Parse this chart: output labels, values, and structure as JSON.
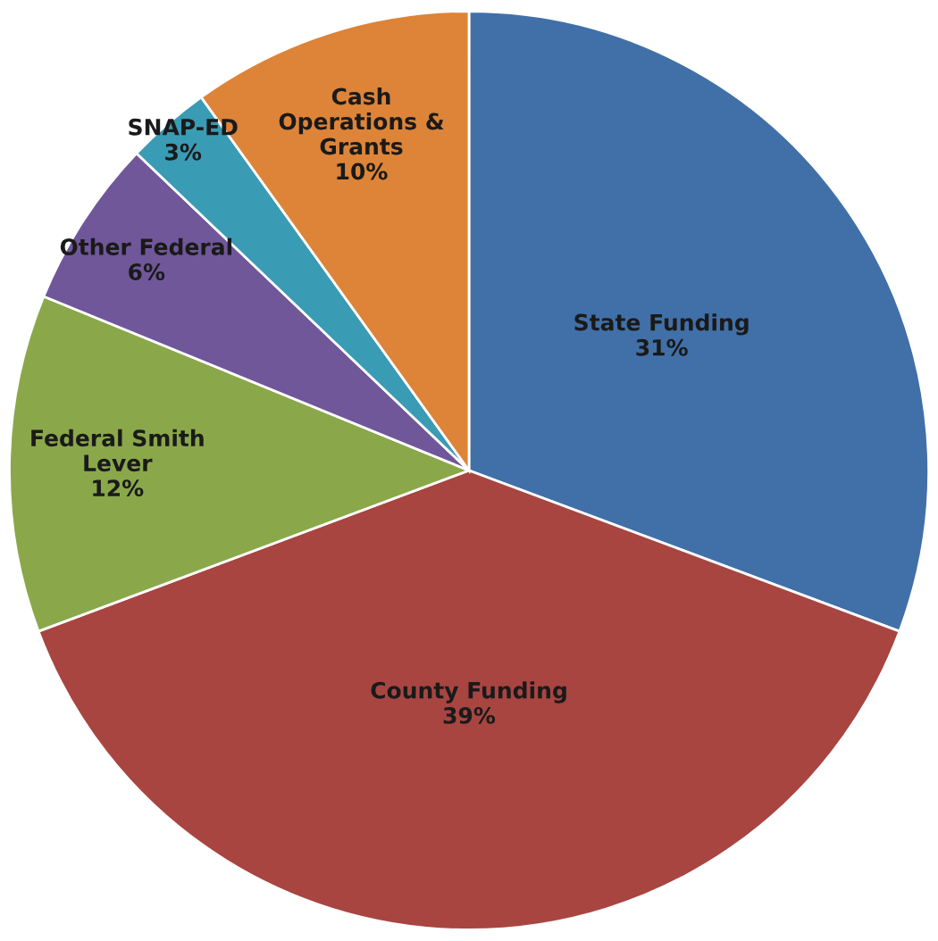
{
  "chart_data": {
    "type": "pie",
    "categories": [
      "State Funding",
      "County Funding",
      "Federal Smith\nLever",
      "Other Federal",
      "SNAP-ED",
      "Cash\nOperations &\nGrants"
    ],
    "values": [
      31,
      39,
      12,
      6,
      3,
      10
    ],
    "value_labels": [
      "31%",
      "39%",
      "12%",
      "6%",
      "3%",
      "10%"
    ],
    "colors": [
      "#4170a8",
      "#a84541",
      "#8aa84a",
      "#70579a",
      "#3a9bb4",
      "#dd8438"
    ],
    "legend": false
  }
}
